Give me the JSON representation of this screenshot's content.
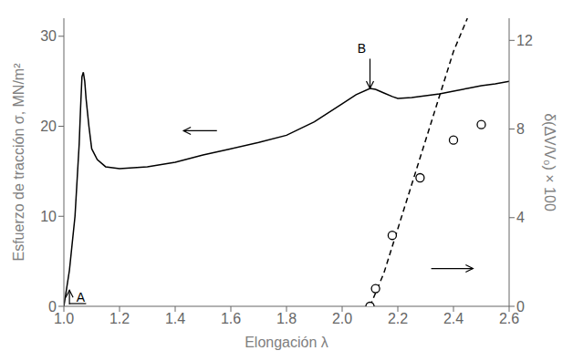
{
  "chart_data": {
    "type": "line",
    "xlabel": "Elongación λ",
    "ylabel": "Esfuerzo de tracción  σ,  MN/m²",
    "y2label": "δ(ΔV/V₀) × 100",
    "xlim": [
      1.0,
      2.6
    ],
    "ylim": [
      0,
      32
    ],
    "y2lim": [
      0,
      13.0
    ],
    "xticks": [
      {
        "value": 1.0,
        "label": "1.0"
      },
      1.2,
      1.4,
      1.6,
      1.8,
      {
        "value": 2.0,
        "label": "2.0"
      },
      2.2,
      2.4,
      2.6
    ],
    "yticks": [
      0,
      10,
      20,
      30
    ],
    "y2ticks": [
      0,
      4,
      8,
      12
    ],
    "grid": false,
    "series": [
      {
        "type": "line",
        "axis": "y",
        "color": "#000000",
        "line_style": "solid",
        "x": [
          1.0,
          1.02,
          1.04,
          1.055,
          1.06,
          1.065,
          1.07,
          1.075,
          1.08,
          1.09,
          1.1,
          1.12,
          1.15,
          1.2,
          1.3,
          1.4,
          1.5,
          1.6,
          1.7,
          1.8,
          1.9,
          2.0,
          2.05,
          2.1,
          2.12,
          2.15,
          2.18,
          2.2,
          2.25,
          2.3,
          2.35,
          2.4,
          2.45,
          2.5,
          2.55,
          2.6
        ],
        "values": [
          0,
          4,
          10,
          18,
          22,
          25.5,
          26,
          25,
          23,
          20,
          17.5,
          16.3,
          15.5,
          15.3,
          15.5,
          16.0,
          16.8,
          17.5,
          18.2,
          19.0,
          20.5,
          22.5,
          23.5,
          24.2,
          24.1,
          23.7,
          23.3,
          23.1,
          23.2,
          23.4,
          23.6,
          23.9,
          24.2,
          24.5,
          24.7,
          25.0
        ]
      },
      {
        "type": "scatter",
        "axis": "y2",
        "color": "#000000",
        "marker": "circle",
        "x": [
          2.1,
          2.12,
          2.18,
          2.28,
          2.4,
          2.5
        ],
        "values": [
          0.0,
          0.8,
          3.2,
          5.8,
          7.5,
          8.2
        ]
      },
      {
        "type": "line",
        "axis": "y2",
        "color": "#000000",
        "line_style": "dashed",
        "x": [
          2.1,
          2.15,
          2.2,
          2.25,
          2.3,
          2.35,
          2.4,
          2.45
        ],
        "values": [
          0.0,
          1.5,
          3.5,
          5.5,
          7.5,
          9.5,
          11.5,
          13.0
        ]
      }
    ],
    "annotations": [
      {
        "text": "A",
        "x": 1.06,
        "y": 0.5,
        "arrow": {
          "from": [
            1.02,
            0.2
          ],
          "to": [
            1.02,
            1.8
          ]
        },
        "line": {
          "from": [
            1.02,
            0.3
          ],
          "to": [
            1.08,
            0.3
          ]
        }
      },
      {
        "text": "B",
        "x": 2.07,
        "y": 28.2,
        "arrow": {
          "from": [
            2.1,
            27.5
          ],
          "to": [
            2.1,
            24.2
          ]
        }
      }
    ],
    "arrows": [
      {
        "from": [
          1.55,
          19.5
        ],
        "to": [
          1.43,
          19.5
        ]
      },
      {
        "from": [
          2.32,
          4.2
        ],
        "to": [
          2.47,
          4.2
        ]
      }
    ]
  }
}
